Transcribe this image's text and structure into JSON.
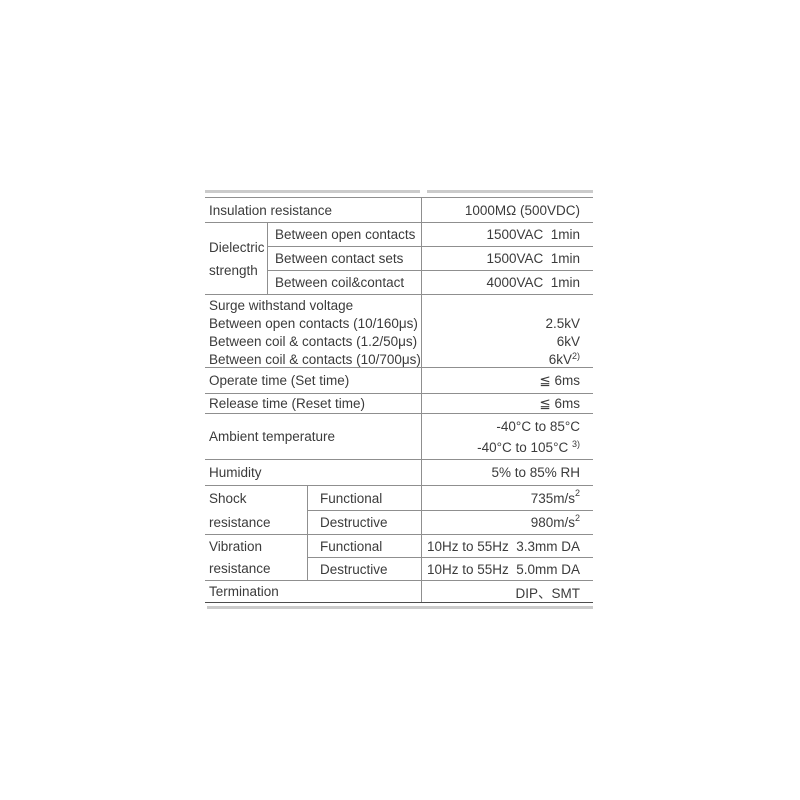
{
  "colors": {
    "background": "#ffffff",
    "text": "#3b3b3b",
    "rule_gray": "#8f8f8f",
    "rule_dark": "#4d4d4d",
    "rule_light": "#cbcbcb"
  },
  "table": {
    "insulation": {
      "label": "Insulation resistance",
      "value": "1000MΩ (500VDC)"
    },
    "dielectric": {
      "label_line1": "Dielectric",
      "label_line2": "strength",
      "rows": [
        {
          "label": "Between open contacts",
          "value": "1500VAC  1min"
        },
        {
          "label": "Between contact sets",
          "value": "1500VAC  1min"
        },
        {
          "label": "Between coil&contact",
          "value": "4000VAC  1min"
        }
      ]
    },
    "surge": {
      "title": "Surge withstand voltage",
      "rows": [
        {
          "label": "Between open contacts (10/160μs)",
          "value": "2.5kV"
        },
        {
          "label": "Between coil & contacts (1.2/50μs)",
          "value": "6kV"
        },
        {
          "label": "Between coil & contacts (10/700μs)",
          "value": "6kV",
          "value_sup": "2)"
        }
      ]
    },
    "operate_time": {
      "label": "Operate time (Set time)",
      "value": "≦ 6ms"
    },
    "release_time": {
      "label": "Release time (Reset time)",
      "value": "≦ 6ms"
    },
    "ambient": {
      "label": "Ambient temperature",
      "value_line1": "-40°C to 85°C",
      "value_line2": "-40°C to 105°C",
      "value_line2_sup": "3)"
    },
    "humidity": {
      "label": "Humidity",
      "value": "5% to 85% RH"
    },
    "shock": {
      "label_line1": "Shock",
      "label_line2": "resistance",
      "rows": [
        {
          "label": "Functional",
          "value": "735m/s",
          "value_sup": "2"
        },
        {
          "label": "Destructive",
          "value": "980m/s",
          "value_sup": "2"
        }
      ]
    },
    "vibration": {
      "label_line1": "Vibration",
      "label_line2": "resistance",
      "rows": [
        {
          "label": "Functional",
          "value": "10Hz to 55Hz  3.3mm DA"
        },
        {
          "label": "Destructive",
          "value": "10Hz to 55Hz  5.0mm DA"
        }
      ]
    },
    "termination": {
      "label": "Termination",
      "value": "DIP、SMT"
    }
  }
}
